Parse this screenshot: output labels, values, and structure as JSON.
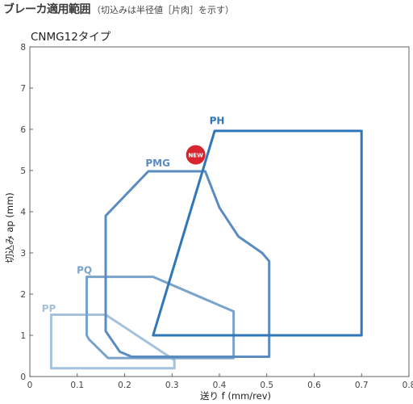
{
  "header": {
    "title": "ブレーカ適用範囲",
    "subtitle": "（切込みは半径値［片肉］を示す）"
  },
  "chart_data": {
    "type": "area",
    "title": "CNMG12タイプ",
    "xlabel": "送り f (mm/rev)",
    "ylabel": "切込み ap (mm)",
    "xlim": [
      0,
      0.8
    ],
    "ylim": [
      0,
      8
    ],
    "xticks": [
      0,
      0.1,
      0.2,
      0.3,
      0.4,
      0.5,
      0.6,
      0.7,
      0.8
    ],
    "xtick_labels": [
      "0",
      "0.1",
      "0.2",
      "0.3",
      "0.4",
      "0.5",
      "0.6",
      "0.7",
      "0.8"
    ],
    "yticks": [
      0,
      1,
      2,
      3,
      4,
      5,
      6,
      7,
      8
    ],
    "ytick_labels": [
      "0",
      "1",
      "2",
      "3",
      "4",
      "5",
      "6",
      "7",
      "8"
    ],
    "grid": false,
    "series": [
      {
        "name": "PP",
        "color": "#a4c2de",
        "label_at": [
          0.04,
          1.57
        ],
        "points": [
          [
            0.045,
            1.5
          ],
          [
            0.16,
            1.5
          ],
          [
            0.305,
            0.4
          ],
          [
            0.305,
            0.2
          ],
          [
            0.045,
            0.2
          ]
        ]
      },
      {
        "name": "PQ",
        "color": "#7aa3cb",
        "label_at": [
          0.115,
          2.5
        ],
        "points": [
          [
            0.12,
            2.42
          ],
          [
            0.26,
            2.42
          ],
          [
            0.43,
            1.58
          ],
          [
            0.43,
            0.45
          ],
          [
            0.165,
            0.45
          ],
          [
            0.125,
            0.9
          ],
          [
            0.12,
            1.0
          ]
        ]
      },
      {
        "name": "PMG",
        "color": "#5b8cc0",
        "label_at": [
          0.27,
          5.1
        ],
        "points": [
          [
            0.16,
            3.9
          ],
          [
            0.25,
            4.98
          ],
          [
            0.37,
            4.98
          ],
          [
            0.4,
            4.1
          ],
          [
            0.44,
            3.4
          ],
          [
            0.49,
            3.0
          ],
          [
            0.505,
            2.8
          ],
          [
            0.505,
            0.48
          ],
          [
            0.215,
            0.48
          ],
          [
            0.19,
            0.6
          ],
          [
            0.16,
            1.1
          ]
        ]
      },
      {
        "name": "PH",
        "color": "#2f77b8",
        "label_at": [
          0.395,
          6.13
        ],
        "points": [
          [
            0.26,
            1.0
          ],
          [
            0.39,
            5.96
          ],
          [
            0.7,
            5.96
          ],
          [
            0.7,
            1.0
          ]
        ]
      }
    ],
    "annotations": [
      {
        "text": "NEW",
        "near_series": "PMG",
        "at": [
          0.35,
          5.38
        ],
        "color": "#d7262f"
      }
    ]
  }
}
